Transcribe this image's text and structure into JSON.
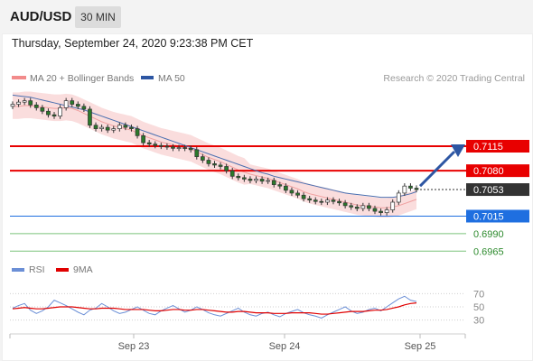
{
  "header": {
    "pair": "AUD/USD",
    "timeframe": "30 MIN",
    "date": "Thursday, September 24, 2020 9:23:38 PM CET"
  },
  "legend": {
    "ma20_label": "MA 20 + Bollinger Bands",
    "ma50_label": "MA 50",
    "credit": "Research © 2020 Trading Central"
  },
  "rsi_legend": {
    "rsi_label": "RSI",
    "ma9_label": "9MA"
  },
  "colors": {
    "red_level": "#e80000",
    "blue_level": "#1f6fe0",
    "green_level": "#7cc47c",
    "current_price": "#333333",
    "ma20_band": "#f7c6c6",
    "ma50": "#4a6fb0",
    "rsi": "#6b8fd6",
    "ma9": "#e00000",
    "arrow": "#2d56a3"
  },
  "chart_data": {
    "type": "candlestick",
    "xaxis_ticks": [
      "Sep 23",
      "Sep 24",
      "Sep 25"
    ],
    "price_range": [
      0.6955,
      0.7195
    ],
    "levels": [
      {
        "label": "0.7115",
        "value": 0.7115,
        "kind": "resistance"
      },
      {
        "label": "0.7080",
        "value": 0.708,
        "kind": "pivot"
      },
      {
        "label": "0.7053",
        "value": 0.7053,
        "kind": "current"
      },
      {
        "label": "0.7015",
        "value": 0.7015,
        "kind": "support"
      },
      {
        "label": "0.6990",
        "value": 0.699,
        "kind": "support2"
      },
      {
        "label": "0.6965",
        "value": 0.6965,
        "kind": "support3"
      }
    ],
    "close": [
      0.7175,
      0.7178,
      0.718,
      0.7174,
      0.717,
      0.7165,
      0.716,
      0.7158,
      0.717,
      0.718,
      0.7175,
      0.7172,
      0.7168,
      0.7145,
      0.714,
      0.7142,
      0.7138,
      0.714,
      0.7145,
      0.7142,
      0.714,
      0.713,
      0.712,
      0.7118,
      0.7116,
      0.7115,
      0.7114,
      0.7112,
      0.7113,
      0.7112,
      0.711,
      0.71,
      0.7095,
      0.709,
      0.7088,
      0.7086,
      0.708,
      0.7072,
      0.707,
      0.7068,
      0.7066,
      0.7068,
      0.7065,
      0.7066,
      0.706,
      0.7058,
      0.7052,
      0.7048,
      0.7045,
      0.704,
      0.7038,
      0.7036,
      0.7035,
      0.7038,
      0.7036,
      0.7034,
      0.703,
      0.7028,
      0.7026,
      0.703,
      0.7026,
      0.7022,
      0.702,
      0.7024,
      0.7035,
      0.7048,
      0.7058,
      0.7055,
      0.7053
    ],
    "ma20": [
      0.7172,
      0.7172,
      0.7173,
      0.7173,
      0.7172,
      0.7171,
      0.717,
      0.7169,
      0.7169,
      0.717,
      0.7169,
      0.7166,
      0.7162,
      0.7158,
      0.7154,
      0.715,
      0.7147,
      0.7144,
      0.7142,
      0.714,
      0.7138,
      0.7134,
      0.713,
      0.7127,
      0.7124,
      0.7121,
      0.7119,
      0.7117,
      0.7115,
      0.7113,
      0.7111,
      0.7107,
      0.7103,
      0.7099,
      0.7096,
      0.7093,
      0.7089,
      0.7085,
      0.7081,
      0.7078,
      0.7075,
      0.7073,
      0.7071,
      0.7069,
      0.7066,
      0.7063,
      0.706,
      0.7057,
      0.7054,
      0.705,
      0.7047,
      0.7045,
      0.7043,
      0.7041,
      0.7039,
      0.7037,
      0.7035,
      0.7033,
      0.7031,
      0.703,
      0.7029,
      0.7028,
      0.7027,
      0.7027,
      0.7028,
      0.703,
      0.7033,
      0.7036,
      0.7039
    ],
    "ma50": [
      0.7188,
      0.7187,
      0.7186,
      0.7185,
      0.7183,
      0.7181,
      0.7179,
      0.7177,
      0.7175,
      0.7173,
      0.7171,
      0.7169,
      0.7167,
      0.7164,
      0.7161,
      0.7158,
      0.7155,
      0.7152,
      0.7149,
      0.7146,
      0.7143,
      0.714,
      0.7137,
      0.7134,
      0.7131,
      0.7128,
      0.7125,
      0.7122,
      0.7119,
      0.7116,
      0.7113,
      0.711,
      0.7107,
      0.7104,
      0.7101,
      0.7098,
      0.7095,
      0.7092,
      0.7089,
      0.7086,
      0.7083,
      0.708,
      0.7077,
      0.7075,
      0.7072,
      0.707,
      0.7068,
      0.7066,
      0.7064,
      0.7062,
      0.706,
      0.7058,
      0.7056,
      0.7054,
      0.7052,
      0.705,
      0.7048,
      0.7047,
      0.7046,
      0.7045,
      0.7044,
      0.7043,
      0.7042,
      0.7042,
      0.7042,
      0.7043,
      0.7045,
      0.7047,
      0.705
    ],
    "rsi_ticks": [
      "70",
      "50",
      "30"
    ],
    "rsi": [
      48,
      52,
      55,
      45,
      40,
      44,
      50,
      60,
      56,
      52,
      47,
      42,
      38,
      45,
      48,
      55,
      50,
      44,
      40,
      42,
      46,
      50,
      45,
      40,
      38,
      44,
      48,
      52,
      47,
      42,
      45,
      50,
      46,
      41,
      38,
      36,
      40,
      44,
      48,
      42,
      38,
      36,
      40,
      42,
      38,
      35,
      40,
      43,
      46,
      41,
      38,
      36,
      33,
      38,
      42,
      46,
      50,
      44,
      40,
      42,
      46,
      48,
      44,
      50,
      56,
      62,
      66,
      60,
      58
    ],
    "rsi_ma9": [
      47,
      48,
      49,
      48,
      47,
      47,
      48,
      49,
      50,
      50,
      50,
      49,
      48,
      47,
      47,
      48,
      48,
      48,
      47,
      46,
      46,
      46,
      46,
      45,
      44,
      44,
      45,
      46,
      46,
      45,
      45,
      46,
      46,
      45,
      44,
      43,
      42,
      42,
      43,
      43,
      42,
      41,
      41,
      41,
      40,
      40,
      40,
      41,
      41,
      41,
      41,
      40,
      39,
      39,
      40,
      41,
      42,
      43,
      43,
      43,
      44,
      45,
      45,
      46,
      48,
      50,
      53,
      55,
      56
    ],
    "projection_arrow": {
      "from": 0.7058,
      "to": 0.7115
    }
  }
}
